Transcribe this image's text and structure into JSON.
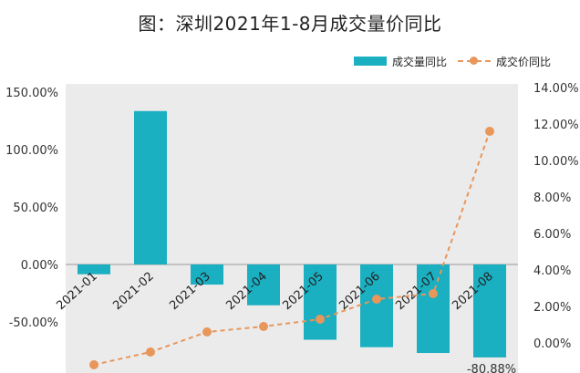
{
  "chart_data": {
    "type": "bar",
    "title": "图：深圳2021年1-8月成交量价同比",
    "categories": [
      "2021-01",
      "2021-02",
      "2021-03",
      "2021-04",
      "2021-05",
      "2021-06",
      "2021-07",
      "2021-08"
    ],
    "series": [
      {
        "name": "成交量同比",
        "type": "bar",
        "axis": "left",
        "values": [
          -8.5,
          133.5,
          -17.5,
          -35.5,
          -65.5,
          -72.0,
          -77.0,
          -80.88
        ],
        "color": "#1AAFC1"
      },
      {
        "name": "成交价同比",
        "type": "line",
        "axis": "right",
        "values": [
          -1.2,
          -0.5,
          0.6,
          0.9,
          1.3,
          2.4,
          2.7,
          11.6
        ],
        "color": "#E8965A"
      }
    ],
    "left_axis": {
      "ticks": [
        "150.00%",
        "100.00%",
        "50.00%",
        "0.00%",
        "-50.00%"
      ],
      "range": [
        -100,
        150
      ]
    },
    "right_axis": {
      "ticks": [
        "14.00%",
        "12.00%",
        "10.00%",
        "8.00%",
        "6.00%",
        "4.00%",
        "2.00%",
        "0.00%"
      ],
      "range": [
        -2,
        14
      ]
    },
    "data_labels": [
      {
        "series": 0,
        "index": 7,
        "text": "-80.88%"
      }
    ],
    "legend_position": "top-right",
    "grid": false,
    "plot_background": "#EBEBEB"
  }
}
